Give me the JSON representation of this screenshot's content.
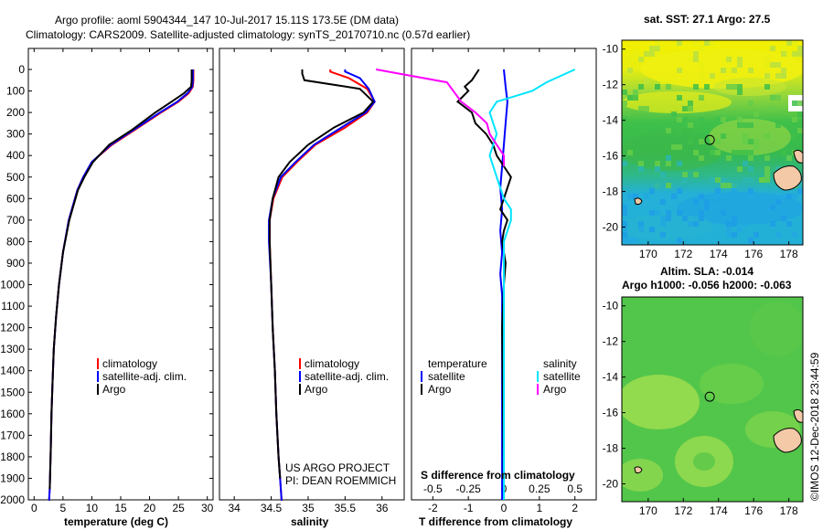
{
  "header": {
    "line1": "Argo profile: aoml 5904344_147 10-Jul-2017 15.11S 173.5E (DM data)",
    "line2": "Climatology: CARS2009. Satellite-adjusted climatology: synTS_20170710.nc (0.57d earlier)"
  },
  "credits": {
    "project": "US ARGO PROJECT",
    "pi": "PI: DEAN ROEMMICH",
    "imos": "©IMOS 12-Dec-2018 23:44:59"
  },
  "colors": {
    "climatology": "#ff0000",
    "satellite": "#0000ff",
    "argo": "#000000",
    "salinity_satellite": "#00e5ff",
    "salinity_argo": "#ff00ff"
  },
  "chart_data": [
    {
      "id": "temperature",
      "type": "line",
      "xlabel": "temperature (deg C)",
      "ylabel": "",
      "xlim": [
        -1,
        31
      ],
      "ylim": [
        2080,
        0
      ],
      "xticks": [
        0,
        5,
        10,
        15,
        20,
        25,
        30
      ],
      "xtick_labels": [
        "0",
        "5",
        "10",
        "15",
        "20",
        "25",
        "30"
      ],
      "yticks": [
        0,
        100,
        200,
        300,
        400,
        500,
        600,
        700,
        800,
        900,
        1000,
        1100,
        1200,
        1300,
        1400,
        1500,
        1600,
        1700,
        1800,
        1900,
        2000
      ],
      "legend": [
        "climatology",
        "satellite-adj. clim.",
        "Argo"
      ],
      "series": [
        {
          "name": "climatology",
          "color": "#ff0000",
          "x": [
            27.6,
            27.6,
            27.5,
            26.8,
            25.0,
            22.0,
            17.5,
            13.5,
            10.0,
            8.5,
            7.5,
            6.0,
            5.0,
            4.3,
            3.8,
            3.4,
            3.2,
            3.0,
            2.9,
            2.8,
            2.7,
            2.6,
            2.5
          ],
          "y": [
            0,
            50,
            80,
            110,
            150,
            200,
            280,
            350,
            430,
            500,
            560,
            700,
            850,
            1000,
            1150,
            1300,
            1450,
            1600,
            1750,
            1850,
            1950,
            2020,
            2080
          ]
        },
        {
          "name": "satellite-adj. clim.",
          "color": "#0000ff",
          "x": [
            27.5,
            27.5,
            27.4,
            26.6,
            24.8,
            21.8,
            17.3,
            13.3,
            10.0,
            8.5,
            7.5,
            6.0,
            5.0,
            4.3,
            3.8,
            3.4,
            3.2,
            3.0,
            2.9,
            2.8,
            2.7,
            2.6,
            2.5
          ],
          "y": [
            0,
            50,
            80,
            110,
            150,
            200,
            280,
            350,
            430,
            500,
            560,
            700,
            850,
            1000,
            1150,
            1300,
            1450,
            1600,
            1750,
            1850,
            1950,
            2020,
            2080
          ]
        },
        {
          "name": "Argo",
          "color": "#000000",
          "x": [
            27.3,
            27.3,
            27.2,
            26.0,
            23.8,
            21.0,
            17.0,
            13.0,
            10.2,
            8.7,
            7.6,
            6.1,
            5.0,
            4.3,
            3.8,
            3.4,
            3.2,
            3.0,
            2.9,
            2.8,
            2.7
          ],
          "y": [
            0,
            50,
            80,
            110,
            150,
            200,
            280,
            350,
            430,
            500,
            560,
            700,
            850,
            1000,
            1150,
            1300,
            1450,
            1600,
            1750,
            1850,
            1950
          ]
        }
      ]
    },
    {
      "id": "salinity",
      "type": "line",
      "xlabel": "salinity",
      "ylabel": "",
      "xlim": [
        33.8,
        36.3
      ],
      "ylim": [
        2080,
        0
      ],
      "xticks": [
        34,
        34.5,
        35,
        35.5,
        36
      ],
      "xtick_labels": [
        "34",
        "34.5",
        "35",
        "35.5",
        "36"
      ],
      "legend": [
        "climatology",
        "satellite-adj. clim.",
        "Argo"
      ],
      "series": [
        {
          "name": "climatology",
          "color": "#ff0000",
          "x": [
            35.3,
            35.3,
            35.55,
            35.8,
            35.9,
            35.8,
            35.5,
            35.1,
            34.85,
            34.65,
            34.53,
            34.48,
            34.48,
            34.5,
            34.52,
            34.55,
            34.57,
            34.6,
            34.62,
            34.63,
            34.64,
            34.65
          ],
          "y": [
            0,
            10,
            40,
            90,
            150,
            200,
            270,
            350,
            430,
            500,
            600,
            700,
            800,
            1000,
            1200,
            1400,
            1600,
            1800,
            1900,
            1950,
            2000,
            2080
          ]
        },
        {
          "name": "satellite-adj. clim.",
          "color": "#0000ff",
          "x": [
            35.5,
            35.5,
            35.7,
            35.82,
            35.9,
            35.78,
            35.45,
            35.08,
            34.83,
            34.63,
            34.52,
            34.47,
            34.47,
            34.5,
            34.52,
            34.55,
            34.57,
            34.6,
            34.62,
            34.63,
            34.64,
            34.65
          ],
          "y": [
            0,
            10,
            40,
            90,
            150,
            200,
            270,
            350,
            430,
            500,
            600,
            700,
            800,
            1000,
            1200,
            1400,
            1600,
            1800,
            1900,
            1950,
            2000,
            2080
          ]
        },
        {
          "name": "Argo",
          "color": "#000000",
          "x": [
            34.92,
            34.92,
            34.95,
            35.7,
            35.88,
            35.75,
            35.35,
            35.0,
            34.75,
            34.6,
            34.52,
            34.48,
            34.48,
            34.5,
            34.52,
            34.55,
            34.57,
            34.6,
            34.62
          ],
          "y": [
            0,
            20,
            50,
            90,
            150,
            200,
            270,
            350,
            430,
            500,
            600,
            700,
            800,
            1000,
            1200,
            1400,
            1600,
            1800,
            1900
          ]
        }
      ]
    },
    {
      "id": "differences",
      "type": "line",
      "xlabel": "T difference from climatology",
      "xlabel_top": "S difference from climatology",
      "xlim": [
        -2.6,
        2.6
      ],
      "ylim": [
        2080,
        0
      ],
      "xticks": [
        -2,
        -1,
        0,
        1,
        2
      ],
      "xtick_labels": [
        "-2",
        "-1",
        "0",
        "1",
        "2"
      ],
      "xticks_s": [
        -0.5,
        -0.25,
        0,
        0.25,
        0.5
      ],
      "xtick_labels_s": [
        "-0.5",
        "-0.25",
        "0",
        "0.25",
        "0.5"
      ],
      "legend_temperature_title": "temperature",
      "legend_salinity_title": "salinity",
      "legend": [
        "satellite",
        "Argo",
        "satellite",
        "Argo"
      ],
      "series": [
        {
          "name": "T satellite",
          "color": "#0000ff",
          "x": [
            0,
            0.05,
            0.1,
            0.05,
            0,
            -0.05,
            -0.1,
            -0.05,
            -0.1,
            -0.05,
            -0.1,
            -0.05,
            -0.05,
            -0.05,
            -0.05,
            -0.05,
            -0.05,
            -0.05,
            -0.05,
            -0.05
          ],
          "y": [
            0,
            80,
            150,
            250,
            350,
            450,
            550,
            650,
            750,
            850,
            950,
            1050,
            1150,
            1300,
            1450,
            1600,
            1750,
            1850,
            1950,
            2000
          ]
        },
        {
          "name": "T Argo",
          "color": "#000000",
          "x": [
            -0.7,
            -0.9,
            -1.1,
            -1.0,
            -1.3,
            -0.9,
            -0.8,
            -0.5,
            -0.3,
            -0.2,
            0,
            0.2,
            0.1,
            0,
            -0.1,
            0.1,
            0,
            -0.05,
            0.05,
            0,
            -0.05,
            0
          ],
          "y": [
            0,
            50,
            80,
            100,
            150,
            200,
            250,
            300,
            350,
            400,
            450,
            500,
            550,
            600,
            650,
            700,
            750,
            800,
            900,
            1000,
            1200,
            1950
          ]
        },
        {
          "name": "S satellite",
          "color": "#00e5ff",
          "x": [
            0.5,
            0.3,
            0.2,
            -0.05,
            -0.1,
            -0.05,
            -0.1,
            -0.05,
            0,
            0.05,
            0.05,
            0,
            0,
            0,
            0,
            0,
            0
          ],
          "y": [
            0,
            60,
            100,
            150,
            200,
            300,
            400,
            500,
            600,
            650,
            700,
            800,
            1000,
            1300,
            1600,
            1900,
            2000
          ]
        },
        {
          "name": "S Argo",
          "color": "#ff00ff",
          "x": [
            -0.9,
            -0.4,
            -0.3,
            -0.2,
            -0.12,
            -0.1,
            -0.05,
            0,
            0
          ],
          "y": [
            0,
            60,
            150,
            200,
            250,
            300,
            350,
            400,
            450
          ]
        }
      ]
    }
  ],
  "maps": [
    {
      "id": "sst-map",
      "title": "sat. SST: 27.1 Argo: 27.5",
      "xticks": [
        170,
        172,
        174,
        176,
        178
      ],
      "xtick_labels": [
        "170",
        "172",
        "174",
        "176",
        "178"
      ],
      "yticks": [
        -10,
        -12,
        -14,
        -16,
        -18,
        -20
      ],
      "ytick_labels": [
        "-10",
        "-12",
        "-14",
        "-16",
        "-18",
        "-20"
      ],
      "xlim": [
        168.5,
        178.8
      ],
      "ylim": [
        -21,
        -9.5
      ],
      "profile_lon": 173.5,
      "profile_lat": -15.1
    },
    {
      "id": "sla-map",
      "title": "Altim. SLA: -0.014",
      "subtitle": "Argo h1000: -0.056 h2000: -0.063",
      "xticks": [
        170,
        172,
        174,
        176,
        178
      ],
      "xtick_labels": [
        "170",
        "172",
        "174",
        "176",
        "178"
      ],
      "yticks": [
        -10,
        -12,
        -14,
        -16,
        -18,
        -20
      ],
      "ytick_labels": [
        "-10",
        "-12",
        "-14",
        "-16",
        "-18",
        "-20"
      ],
      "xlim": [
        168.5,
        178.8
      ],
      "ylim": [
        -21,
        -9.5
      ],
      "profile_lon": 173.5,
      "profile_lat": -15.1
    }
  ]
}
